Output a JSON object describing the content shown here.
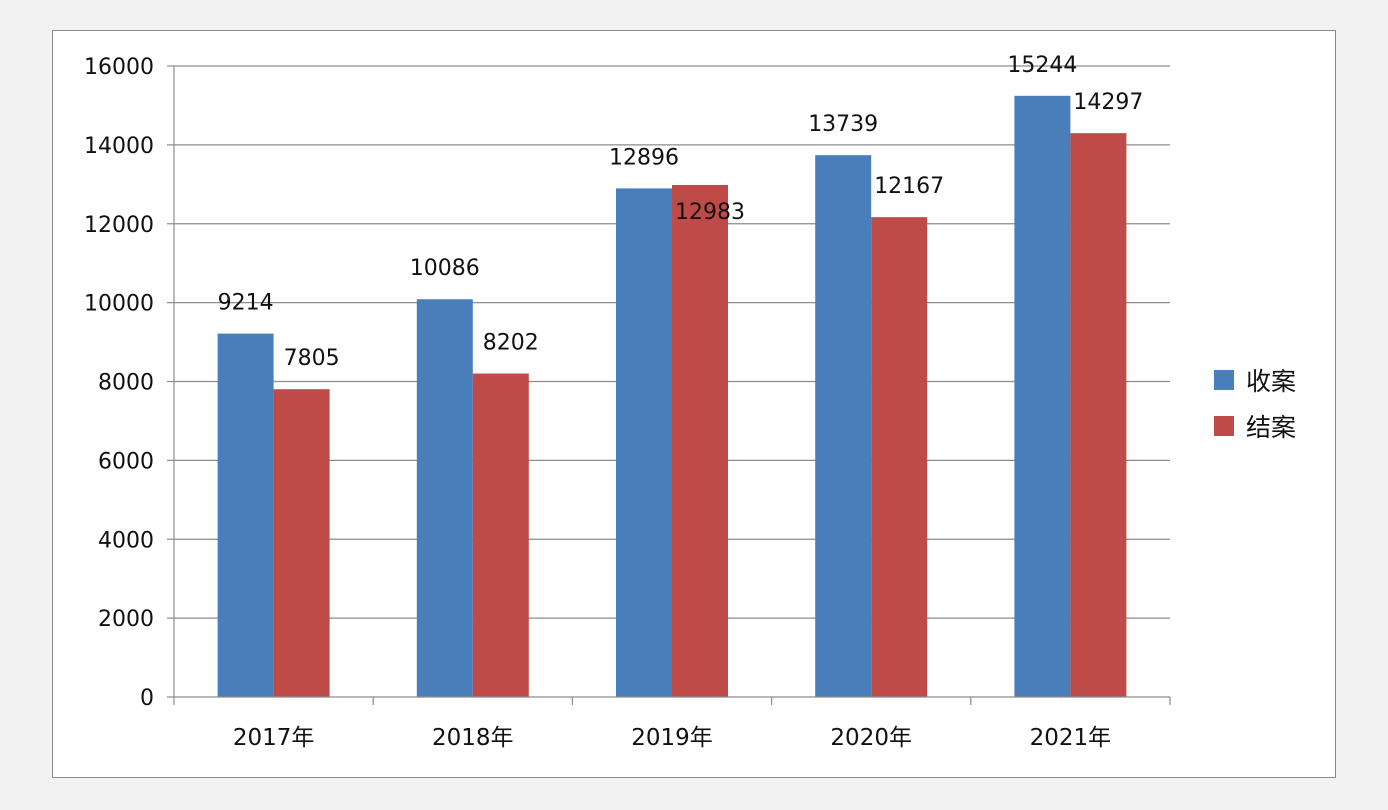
{
  "chart_data": {
    "type": "bar",
    "title": "",
    "xlabel": "",
    "ylabel": "",
    "categories": [
      "2017年",
      "2018年",
      "2019年",
      "2020年",
      "2021年"
    ],
    "series": [
      {
        "name": "收案",
        "values": [
          9214,
          10086,
          12896,
          13739,
          15244
        ],
        "color": "#4a7ebb"
      },
      {
        "name": "结案",
        "values": [
          7805,
          8202,
          12983,
          12167,
          14297
        ],
        "color": "#be4b48"
      }
    ],
    "ylim": [
      0,
      16000
    ],
    "yticks": [
      0,
      2000,
      4000,
      6000,
      8000,
      10000,
      12000,
      14000,
      16000
    ],
    "grid": true,
    "legend_position": "right"
  }
}
